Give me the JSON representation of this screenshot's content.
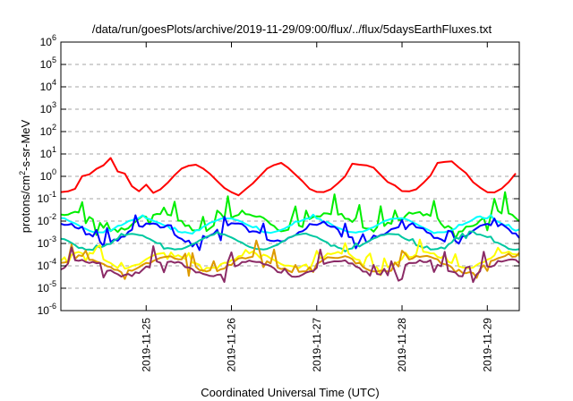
{
  "chart_data": {
    "type": "line",
    "title": "/data/run/goesPlots/archive/2019-11-29/09:00/flux/../flux/5daysEarthFluxes.txt",
    "xlabel": "Coordinated Universal Time (UTC)",
    "ylabel": {
      "base": "protons/cm",
      "sup": "2",
      "rest": "-s-sr-MeV"
    },
    "x_unit": "days",
    "xlim": [
      "2019-11-24 00:00",
      "2019-11-29 09:00"
    ],
    "ylim": [
      1e-06,
      1000000.0
    ],
    "y_scale": "log",
    "x_ticks": [
      {
        "x": "2019-11-25",
        "label": "2019-11-25"
      },
      {
        "x": "2019-11-26",
        "label": "2019-11-26"
      },
      {
        "x": "2019-11-27",
        "label": "2019-11-27"
      },
      {
        "x": "2019-11-28",
        "label": "2019-11-28"
      },
      {
        "x": "2019-11-29",
        "label": "2019-11-29"
      }
    ],
    "y_ticks": [
      {
        "exp": -6,
        "base": "10",
        "sup": "-6"
      },
      {
        "exp": -5,
        "base": "10",
        "sup": "-5"
      },
      {
        "exp": -4,
        "base": "10",
        "sup": "-4"
      },
      {
        "exp": -3,
        "base": "10",
        "sup": "-3"
      },
      {
        "exp": -2,
        "base": "10",
        "sup": "-2"
      },
      {
        "exp": -1,
        "base": "10",
        "sup": "-1"
      },
      {
        "exp": 0,
        "base": "10",
        "sup": "0"
      },
      {
        "exp": 1,
        "base": "10",
        "sup": "1"
      },
      {
        "exp": 2,
        "base": "10",
        "sup": "2"
      },
      {
        "exp": 3,
        "base": "10",
        "sup": "3"
      },
      {
        "exp": 4,
        "base": "10",
        "sup": "4"
      },
      {
        "exp": 5,
        "base": "10",
        "sup": "5"
      },
      {
        "exp": 6,
        "base": "10",
        "sup": "6"
      }
    ],
    "grid": {
      "horizontal_dashed": true
    },
    "series": [
      {
        "color": "#ff0000",
        "x_start": "2019-11-24 00:00",
        "step_hours": 2,
        "base": 0.8,
        "amp": 3.2,
        "period_days": 1,
        "phase": -0.3,
        "noise": 0.6
      },
      {
        "color": "#00ee00",
        "x_start": "2019-11-24 00:00",
        "step_hours": 1,
        "base": 0.01,
        "amp": 1.5,
        "period_days": 1,
        "phase": 0.1,
        "noise": 1.6
      },
      {
        "color": "#00ffff",
        "x_start": "2019-11-24 00:00",
        "step_hours": 1,
        "base": 0.0065,
        "amp": 1.1,
        "period_days": 1,
        "phase": 0.3,
        "noise": 0.3
      },
      {
        "color": "#0000ff",
        "x_start": "2019-11-24 00:00",
        "step_hours": 1,
        "base": 0.003,
        "amp": 1.5,
        "period_days": 1,
        "phase": 0.2,
        "noise": 1.2
      },
      {
        "color": "#00c8a0",
        "x_start": "2019-11-24 00:00",
        "step_hours": 1,
        "base": 0.0012,
        "amp": 1.2,
        "period_days": 1,
        "phase": 0.4,
        "noise": 0.3
      },
      {
        "color": "#ffff00",
        "x_start": "2019-11-24 00:00",
        "step_hours": 1,
        "base": 0.00018,
        "amp": 1.2,
        "period_days": 1,
        "phase": 0.0,
        "noise": 1.0
      },
      {
        "color": "#dd9900",
        "x_start": "2019-11-24 00:00",
        "step_hours": 1,
        "base": 0.00012,
        "amp": 1.2,
        "period_days": 1,
        "phase": 0.0,
        "noise": 1.2
      },
      {
        "color": "#8b2a66",
        "x_start": "2019-11-24 00:00",
        "step_hours": 1,
        "base": 8e-05,
        "amp": 1.2,
        "period_days": 1,
        "phase": 0.0,
        "noise": 1.3
      }
    ]
  }
}
